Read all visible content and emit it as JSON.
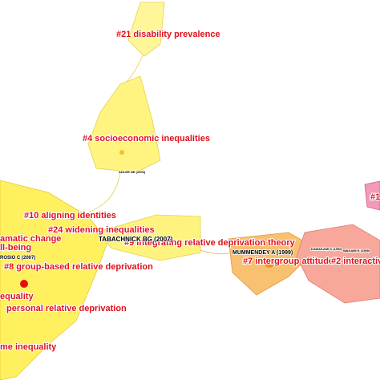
{
  "clusters": [
    {
      "label": "#21 disability prevalence"
    },
    {
      "label": "#4 socioeconomic inequalities"
    },
    {
      "label": "#10 aligning identities"
    },
    {
      "label": "#24 widening inequalities"
    },
    {
      "label": "amatic change"
    },
    {
      "label": "#9 integrating relative deprivation theory"
    },
    {
      "label": "ll-being"
    },
    {
      "label": "#8 group-based relative deprivation"
    },
    {
      "label": "equality"
    },
    {
      "label": "personal relative deprivation"
    },
    {
      "label": "me inequality"
    },
    {
      "label": "#7 intergroup attitude"
    },
    {
      "label": "#2 interactiv"
    },
    {
      "label": "#1"
    }
  ],
  "references": [
    {
      "label": "ADLER NE (2000)"
    },
    {
      "label": "TABACHNICK BG (2007)"
    },
    {
      "label": "ROSIO C (2007)"
    },
    {
      "label": "MUMMENDEY A (1999)"
    },
    {
      "label": "KAWAKAMI K (1990)"
    },
    {
      "label": "WAKAMI K (1990)"
    }
  ]
}
